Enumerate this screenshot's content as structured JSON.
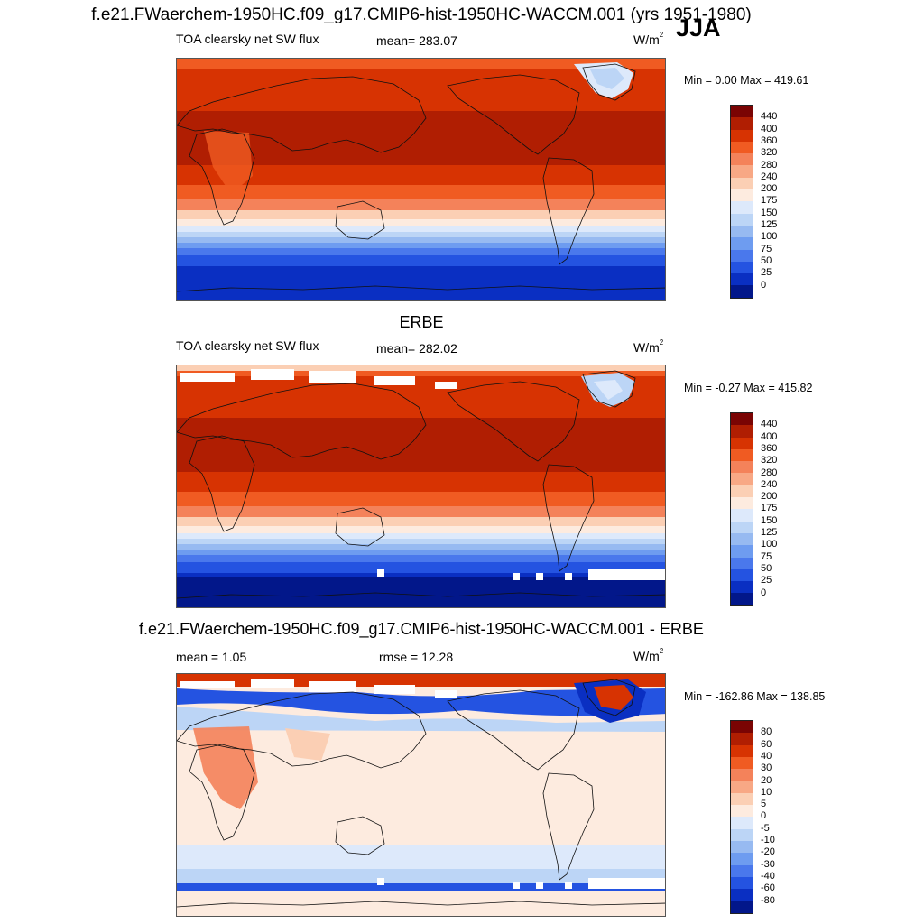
{
  "main_title": "f.e21.FWaerchem-1950HC.f09_g17.CMIP6-hist-1950HC-WACCM.001 (yrs 1951-1980)",
  "season": "JJA",
  "panels": [
    {
      "id": "model",
      "section_title": "",
      "left_label": "TOA clearsky net SW flux",
      "center_label": "mean= 283.07",
      "units_main": "W/m",
      "units_sup": "2",
      "minmax": "Min =   0.00 Max = 419.61",
      "colorbar": {
        "colors": [
          "#7a0403",
          "#b01e02",
          "#d73302",
          "#f05b22",
          "#f4825a",
          "#f8a885",
          "#fbcfb4",
          "#fdebdf",
          "#dde9fb",
          "#bcd5f6",
          "#97baf1",
          "#6e9cf0",
          "#4a78ec",
          "#2453e1",
          "#0a2fc2",
          "#02178a"
        ],
        "labels": [
          "440",
          "400",
          "360",
          "320",
          "280",
          "240",
          "200",
          "175",
          "150",
          "125",
          "100",
          "75",
          "50",
          "25",
          "0"
        ]
      }
    },
    {
      "id": "obs",
      "section_title": "ERBE",
      "left_label": "TOA clearsky net SW flux",
      "center_label": "mean= 282.02",
      "units_main": "W/m",
      "units_sup": "2",
      "minmax": "Min =  -0.27 Max = 415.82",
      "colorbar": {
        "colors": [
          "#7a0403",
          "#b01e02",
          "#d73302",
          "#f05b22",
          "#f4825a",
          "#f8a885",
          "#fbcfb4",
          "#fdebdf",
          "#dde9fb",
          "#bcd5f6",
          "#97baf1",
          "#6e9cf0",
          "#4a78ec",
          "#2453e1",
          "#0a2fc2",
          "#02178a"
        ],
        "labels": [
          "440",
          "400",
          "360",
          "320",
          "280",
          "240",
          "200",
          "175",
          "150",
          "125",
          "100",
          "75",
          "50",
          "25",
          "0"
        ]
      }
    },
    {
      "id": "diff",
      "section_title": "f.e21.FWaerchem-1950HC.f09_g17.CMIP6-hist-1950HC-WACCM.001 - ERBE",
      "left_label": "mean =   1.05",
      "center_label": "rmse =  12.28",
      "units_main": "W/m",
      "units_sup": "2",
      "minmax": "Min = -162.86 Max = 138.85",
      "colorbar": {
        "colors": [
          "#7a0403",
          "#b01e02",
          "#d73302",
          "#f05b22",
          "#f4825a",
          "#f8a885",
          "#fbcfb4",
          "#fdebdf",
          "#dde9fb",
          "#bcd5f6",
          "#97baf1",
          "#6e9cf0",
          "#4a78ec",
          "#2453e1",
          "#0a2fc2",
          "#02178a"
        ],
        "labels": [
          "80",
          "60",
          "40",
          "30",
          "20",
          "10",
          "5",
          "0",
          "-5",
          "-10",
          "-20",
          "-30",
          "-40",
          "-60",
          "-80"
        ]
      }
    }
  ]
}
